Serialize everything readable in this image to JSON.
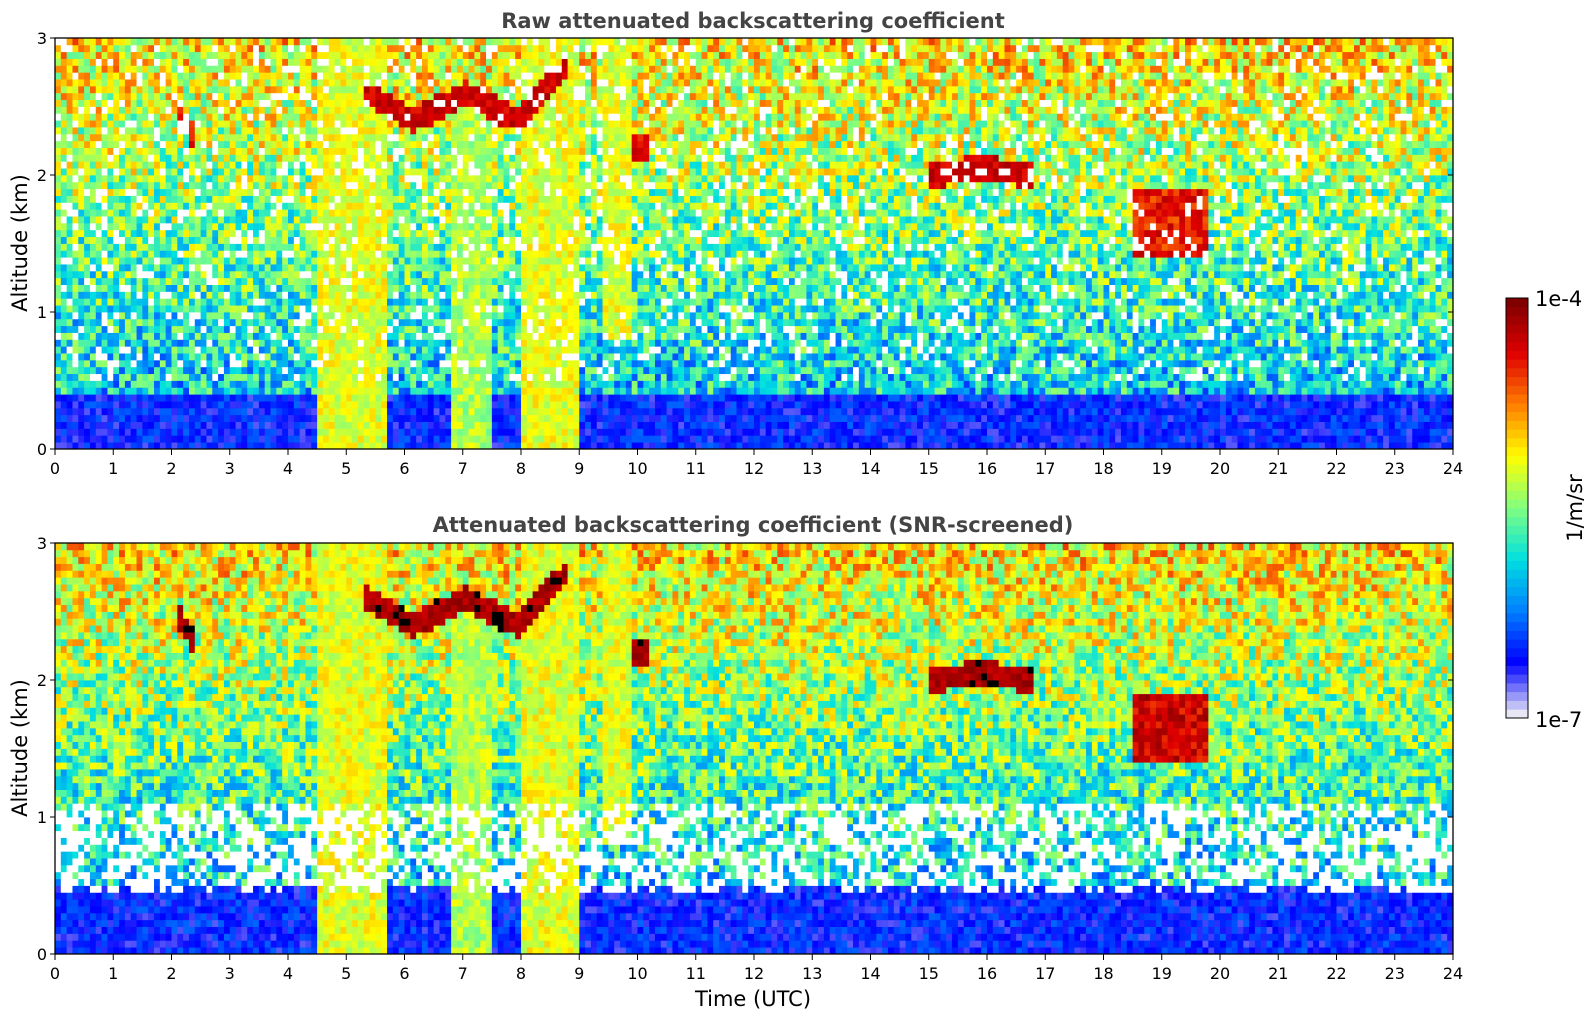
{
  "chart_data": [
    {
      "type": "heatmap",
      "title": "Raw attenuated backscattering coefficient",
      "xlabel": "",
      "ylabel": "Altitude (km)",
      "xlim": [
        0,
        24
      ],
      "ylim": [
        0,
        3
      ],
      "xticks": [
        0,
        1,
        2,
        3,
        4,
        5,
        6,
        7,
        8,
        9,
        10,
        11,
        12,
        13,
        14,
        15,
        16,
        17,
        18,
        19,
        20,
        21,
        22,
        23,
        24
      ],
      "xtick_labels": [
        "0",
        "1",
        "2",
        "3",
        "4",
        "5",
        "6",
        "7",
        "8",
        "9",
        "10",
        "11",
        "12",
        "13",
        "14",
        "15",
        "16",
        "17",
        "18",
        "19",
        "20",
        "21",
        "22",
        "23",
        "24"
      ],
      "yticks": [
        0,
        1,
        2,
        3
      ],
      "ytick_labels": [
        "0",
        "1",
        "2",
        "3"
      ],
      "grid": false,
      "screened": false,
      "features": [
        {
          "kind": "surface-layer",
          "x0": 0,
          "x1": 24,
          "y0": 0,
          "y1": 0.4,
          "level": 0.15
        },
        {
          "kind": "precip-column",
          "x0": 4.5,
          "x1": 5.7,
          "y0": 0,
          "y1": 3,
          "level": 0.6
        },
        {
          "kind": "precip-column",
          "x0": 6.8,
          "x1": 7.5,
          "y0": 0,
          "y1": 2.5,
          "level": 0.55
        },
        {
          "kind": "precip-column",
          "x0": 8.0,
          "x1": 9.0,
          "y0": 0,
          "y1": 3,
          "level": 0.6
        },
        {
          "kind": "precip-column",
          "x0": 9.4,
          "x1": 9.9,
          "y0": 0.8,
          "y1": 3,
          "level": 0.6
        },
        {
          "kind": "cloud-layer",
          "x_start": 5.3,
          "x_end": 8.8,
          "y_points": [
            2.6,
            2.4,
            2.6,
            2.4,
            2.8
          ],
          "level": 0.95
        },
        {
          "kind": "cloud-layer",
          "x_start": 15.0,
          "x_end": 16.8,
          "y_points": [
            2.0,
            2.05,
            2.0
          ],
          "level": 0.95
        },
        {
          "kind": "cloud-layer",
          "x_start": 2.15,
          "x_end": 2.35,
          "y_points": [
            2.45,
            2.3
          ],
          "level": 0.9
        },
        {
          "kind": "cloud-layer",
          "x_start": 9.9,
          "x_end": 10.2,
          "y_points": [
            2.2,
            2.2
          ],
          "level": 0.92
        },
        {
          "kind": "cloud-patch",
          "x0": 18.5,
          "x1": 19.8,
          "y0": 1.4,
          "y1": 1.9,
          "level": 0.85
        }
      ]
    },
    {
      "type": "heatmap",
      "title": "Attenuated backscattering coefficient (SNR-screened)",
      "xlabel": "Time (UTC)",
      "ylabel": "Altitude (km)",
      "xlim": [
        0,
        24
      ],
      "ylim": [
        0,
        3
      ],
      "xticks": [
        0,
        1,
        2,
        3,
        4,
        5,
        6,
        7,
        8,
        9,
        10,
        11,
        12,
        13,
        14,
        15,
        16,
        17,
        18,
        19,
        20,
        21,
        22,
        23,
        24
      ],
      "xtick_labels": [
        "0",
        "1",
        "2",
        "3",
        "4",
        "5",
        "6",
        "7",
        "8",
        "9",
        "10",
        "11",
        "12",
        "13",
        "14",
        "15",
        "16",
        "17",
        "18",
        "19",
        "20",
        "21",
        "22",
        "23",
        "24"
      ],
      "yticks": [
        0,
        1,
        2,
        3
      ],
      "ytick_labels": [
        "0",
        "1",
        "2",
        "3"
      ],
      "grid": false,
      "screened": true,
      "features": [
        {
          "kind": "surface-layer",
          "x0": 0,
          "x1": 24,
          "y0": 0,
          "y1": 0.5,
          "level": 0.15
        },
        {
          "kind": "precip-column",
          "x0": 4.5,
          "x1": 5.7,
          "y0": 0,
          "y1": 3,
          "level": 0.6
        },
        {
          "kind": "precip-column",
          "x0": 6.8,
          "x1": 7.5,
          "y0": 0,
          "y1": 2.5,
          "level": 0.55
        },
        {
          "kind": "precip-column",
          "x0": 8.0,
          "x1": 9.0,
          "y0": 0,
          "y1": 3,
          "level": 0.6
        },
        {
          "kind": "precip-column",
          "x0": 9.4,
          "x1": 9.9,
          "y0": 0.8,
          "y1": 3,
          "level": 0.6
        },
        {
          "kind": "cloud-layer",
          "x_start": 5.3,
          "x_end": 8.8,
          "y_points": [
            2.6,
            2.4,
            2.6,
            2.4,
            2.8
          ],
          "level": 1.0
        },
        {
          "kind": "cloud-layer",
          "x_start": 15.0,
          "x_end": 16.8,
          "y_points": [
            2.0,
            2.05,
            2.0
          ],
          "level": 1.0
        },
        {
          "kind": "cloud-layer",
          "x_start": 2.15,
          "x_end": 2.35,
          "y_points": [
            2.45,
            2.3
          ],
          "level": 1.0
        },
        {
          "kind": "cloud-layer",
          "x_start": 9.9,
          "x_end": 10.2,
          "y_points": [
            2.2,
            2.2
          ],
          "level": 1.0
        },
        {
          "kind": "cloud-patch",
          "x0": 18.5,
          "x1": 19.8,
          "y0": 1.4,
          "y1": 1.9,
          "level": 0.9
        }
      ]
    }
  ],
  "colorbar": {
    "label": "1/m/sr",
    "max_label": "1e-4",
    "min_label": "1e-7",
    "vmin": 1e-07,
    "vmax": 0.0001,
    "scale": "log",
    "colormap": [
      "#e6e6f5",
      "#0000ff",
      "#0080ff",
      "#00e0e0",
      "#80ff80",
      "#ffff00",
      "#ff8000",
      "#e00000",
      "#800000"
    ]
  }
}
